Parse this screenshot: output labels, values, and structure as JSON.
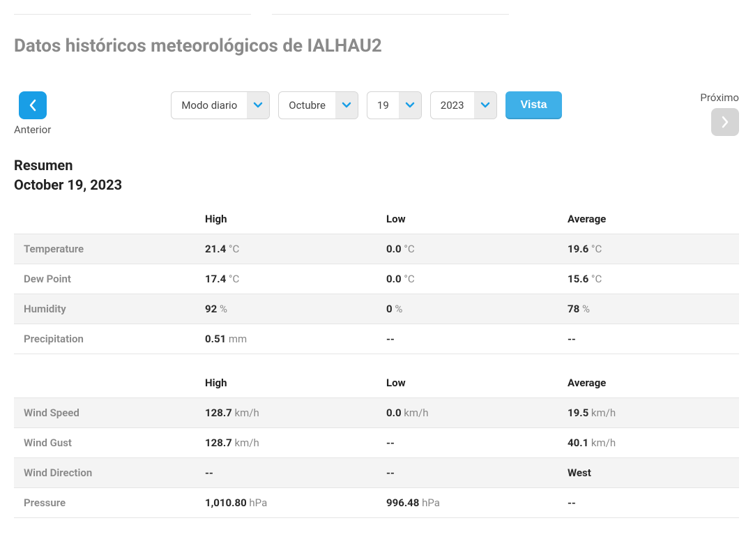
{
  "page_title": "Datos históricos meteorológicos de IALHAU2",
  "nav": {
    "prev_label": "Anterior",
    "next_label": "Próximo"
  },
  "selects": {
    "mode": "Modo diario",
    "month": "Octubre",
    "day": "19",
    "year": "2023"
  },
  "vista_label": "Vista",
  "summary": {
    "title": "Resumen",
    "date": "October 19, 2023"
  },
  "headers": {
    "high": "High",
    "low": "Low",
    "average": "Average"
  },
  "table1": {
    "rows": [
      {
        "label": "Temperature",
        "high_val": "21.4",
        "high_unit": "°C",
        "low_val": "0.0",
        "low_unit": "°C",
        "avg_val": "19.6",
        "avg_unit": "°C"
      },
      {
        "label": "Dew Point",
        "high_val": "17.4",
        "high_unit": "°C",
        "low_val": "0.0",
        "low_unit": "°C",
        "avg_val": "15.6",
        "avg_unit": "°C"
      },
      {
        "label": "Humidity",
        "high_val": "92",
        "high_unit": "%",
        "low_val": "0",
        "low_unit": "%",
        "avg_val": "78",
        "avg_unit": "%"
      },
      {
        "label": "Precipitation",
        "high_val": "0.51",
        "high_unit": "mm",
        "low_text": "--",
        "avg_text": "--"
      }
    ]
  },
  "table2": {
    "rows": [
      {
        "label": "Wind Speed",
        "high_val": "128.7",
        "high_unit": "km/h",
        "low_val": "0.0",
        "low_unit": "km/h",
        "avg_val": "19.5",
        "avg_unit": "km/h"
      },
      {
        "label": "Wind Gust",
        "high_val": "128.7",
        "high_unit": "km/h",
        "low_text": "--",
        "avg_val": "40.1",
        "avg_unit": "km/h"
      },
      {
        "label": "Wind Direction",
        "high_text": "--",
        "low_text": "--",
        "avg_text": "West"
      },
      {
        "label": "Pressure",
        "high_val": "1,010.80",
        "high_unit": "hPa",
        "low_val": "996.48",
        "low_unit": "hPa",
        "avg_text": "--"
      }
    ]
  },
  "colors": {
    "primary": "#199ee6",
    "disabled": "#d5d5d5",
    "header_text": "#8a8a8a",
    "border": "#e5e5e5",
    "stripe": "#f4f4f4"
  }
}
